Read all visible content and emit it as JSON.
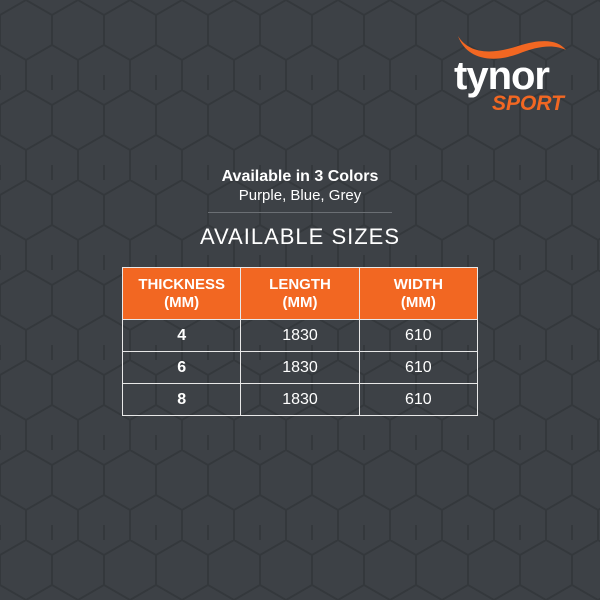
{
  "brand": {
    "name": "tynor",
    "sub": "SPORT",
    "accent": "#f26722"
  },
  "colors": {
    "title": "Available in 3 Colors",
    "list": "Purple, Blue, Grey"
  },
  "sizes": {
    "title": "AVAILABLE SIZES",
    "headers": [
      [
        "THICKNESS",
        "(MM)"
      ],
      [
        "LENGTH",
        "(MM)"
      ],
      [
        "WIDTH",
        "(MM)"
      ]
    ],
    "rows": [
      [
        "4",
        "1830",
        "610"
      ],
      [
        "6",
        "1830",
        "610"
      ],
      [
        "8",
        "1830",
        "610"
      ]
    ]
  }
}
